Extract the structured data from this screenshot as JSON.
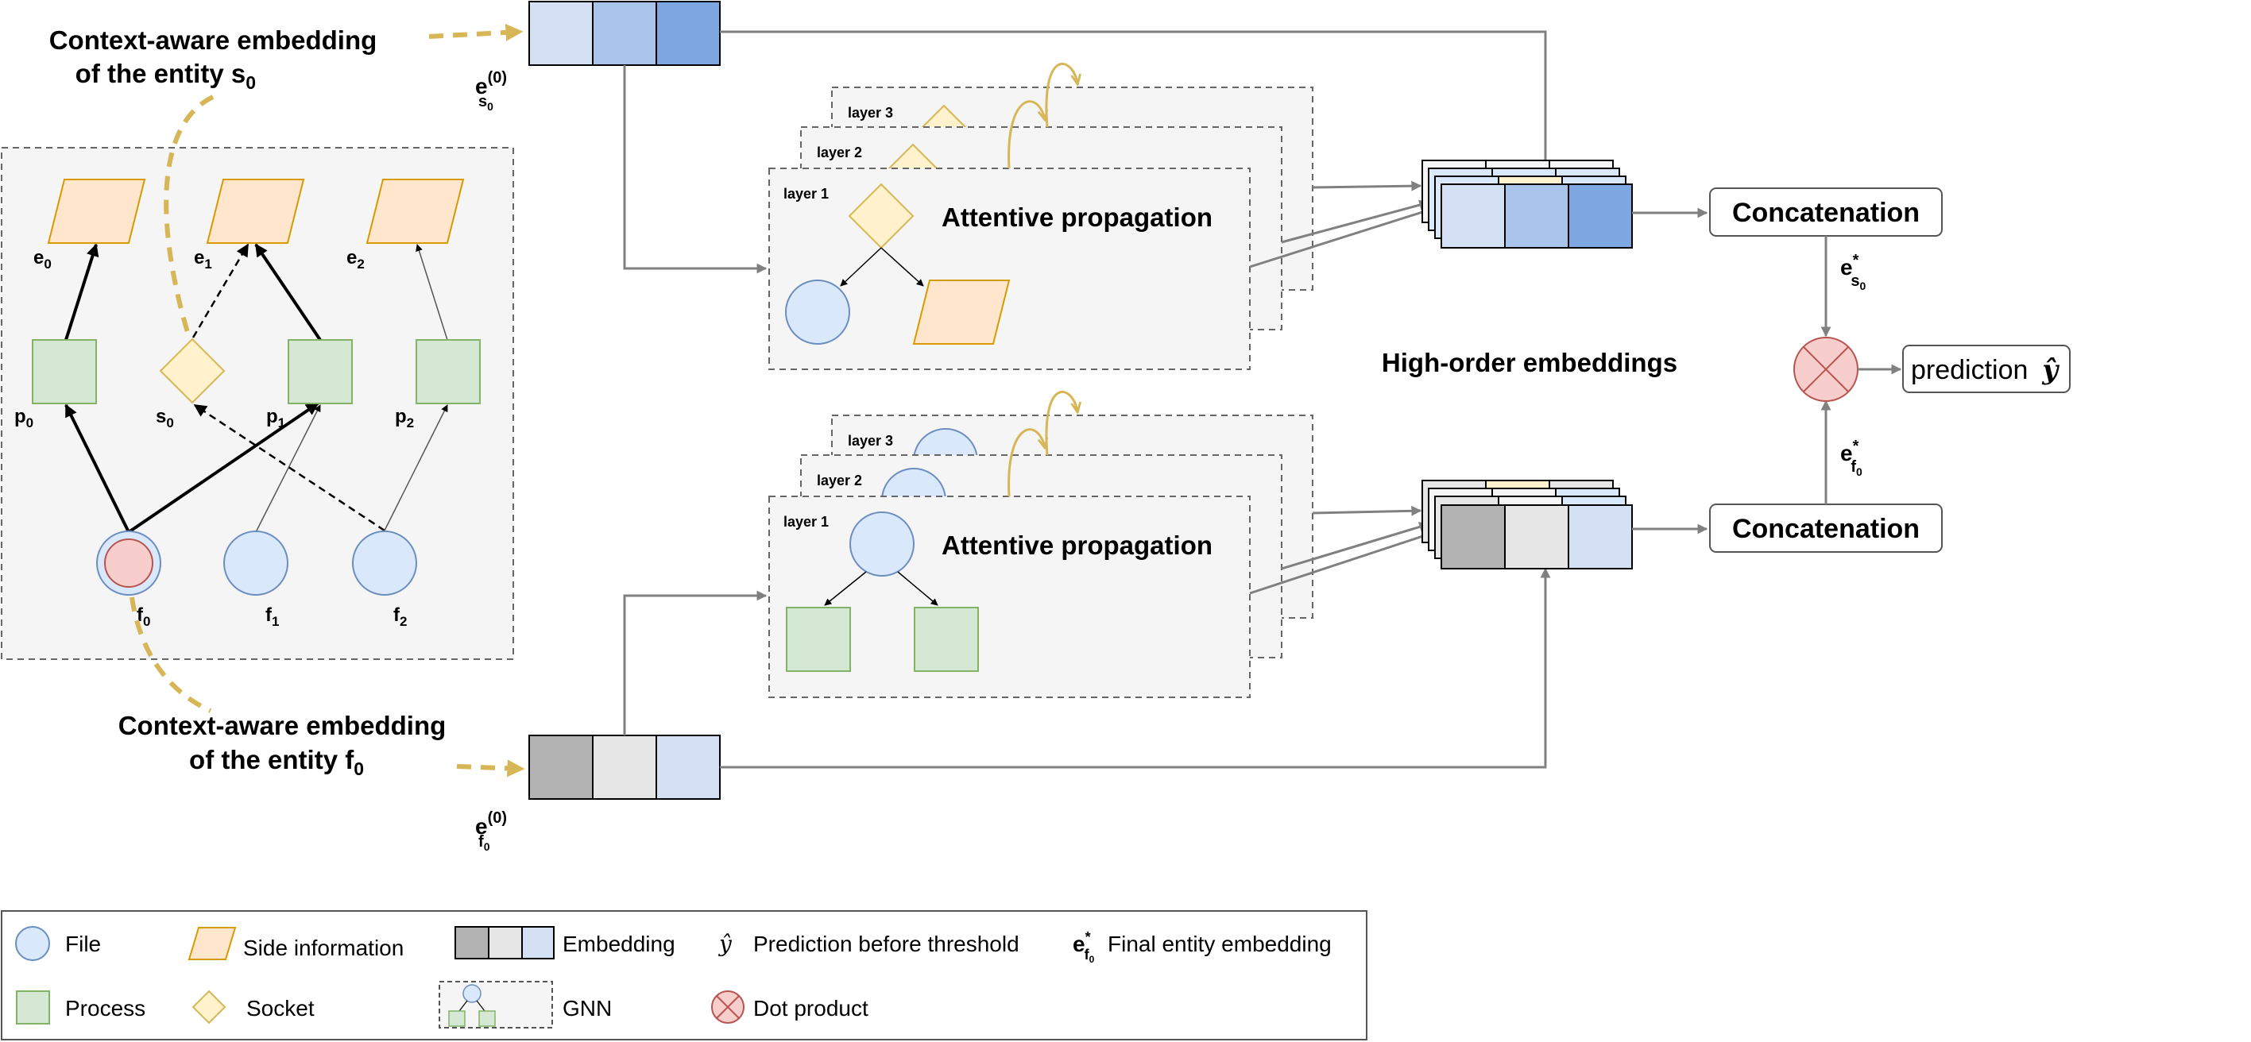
{
  "colors": {
    "file_fill": "#dae8fc",
    "file_stroke": "#6c8ebf",
    "side_fill": "#ffe6cc",
    "side_stroke": "#d79b00",
    "process_fill": "#d5e8d4",
    "process_stroke": "#82b366",
    "socket_fill": "#fff2cc",
    "socket_stroke": "#d6b656",
    "dot_fill": "#f8cecc",
    "dot_stroke": "#b85450",
    "gold_arrow": "#d6b656",
    "panel_bg": "#f5f5f5",
    "emb_blue_1": "#d4e1f5",
    "emb_blue_2": "#a9c4eb",
    "emb_blue_3": "#7ea6e0",
    "emb_gray_1": "#b3b3b3",
    "emb_gray_2": "#e6e6e6"
  },
  "context": {
    "s0_line1": "Context-aware embedding",
    "s0_line2": "of the entity s",
    "s0_sub": "0",
    "f0_line1": "Context-aware embedding",
    "f0_line2": "of the entity f",
    "f0_sub": "0"
  },
  "graph": {
    "side_labels": [
      {
        "base": "e",
        "sub": "0"
      },
      {
        "base": "e",
        "sub": "1"
      },
      {
        "base": "e",
        "sub": "2"
      }
    ],
    "process_labels": [
      {
        "base": "p",
        "sub": "0"
      },
      {
        "base": "p",
        "sub": "1"
      },
      {
        "base": "p",
        "sub": "2"
      }
    ],
    "socket_label": {
      "base": "s",
      "sub": "0"
    },
    "file_labels": [
      {
        "base": "f",
        "sub": "0"
      },
      {
        "base": "f",
        "sub": "1"
      },
      {
        "base": "f",
        "sub": "2"
      }
    ]
  },
  "embeddings": {
    "s0_initial": {
      "base": "e",
      "sup": "(0)",
      "sub": "s",
      "subsub": "0"
    },
    "f0_initial": {
      "base": "e",
      "sup": "(0)",
      "sub": "f",
      "subsub": "0"
    },
    "s0_final": {
      "base": "e",
      "sup": "*",
      "sub": "s",
      "subsub": "0"
    },
    "f0_final": {
      "base": "e",
      "sup": "*",
      "sub": "f",
      "subsub": "0"
    }
  },
  "gnn": {
    "layers": [
      "layer 1",
      "layer 2",
      "layer 3"
    ],
    "title": "Attentive propagation"
  },
  "high_order_label": "High-order embeddings",
  "concat_label": "Concatenation",
  "prediction": {
    "label": "prediction",
    "symbol": "ŷ"
  },
  "legend": {
    "file": "File",
    "side": "Side information",
    "embedding": "Embedding",
    "prediction_symbol": "ŷ",
    "prediction": "Prediction before threshold",
    "final_symbol": {
      "base": "e",
      "sup": "*",
      "sub": "f",
      "subsub": "0"
    },
    "final": "Final entity embedding",
    "process": "Process",
    "socket": "Socket",
    "gnn": "GNN",
    "dot": "Dot product"
  }
}
